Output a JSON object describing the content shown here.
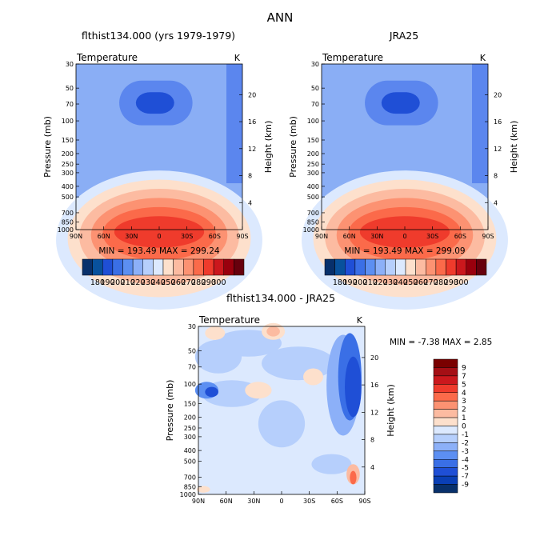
{
  "page_title": "ANN",
  "chart_data": [
    {
      "type": "heatmap",
      "title": "flthist134.000 (yrs 1979-1979)",
      "variable": "Temperature",
      "units": "K",
      "ylabel": "Pressure (mb)",
      "y2label": "Height (km)",
      "x_ticks": [
        "90N",
        "60N",
        "30N",
        "0",
        "30S",
        "60S",
        "90S"
      ],
      "y_ticks": [
        "30",
        "50",
        "70",
        "100",
        "150",
        "200",
        "250",
        "300",
        "400",
        "500",
        "700",
        "850",
        "1000"
      ],
      "y2_ticks": [
        "20",
        "16",
        "12",
        "8",
        "4"
      ],
      "stats": "MIN = 193.49   MAX = 299.24",
      "colorbar_labels": [
        "180",
        "190",
        "200",
        "210",
        "220",
        "230",
        "240",
        "250",
        "260",
        "270",
        "280",
        "290",
        "300"
      ]
    },
    {
      "type": "heatmap",
      "title": "JRA25",
      "variable": "Temperature",
      "units": "K",
      "ylabel": "Pressure (mb)",
      "y2label": "Height (km)",
      "x_ticks": [
        "90N",
        "60N",
        "30N",
        "0",
        "30S",
        "60S",
        "90S"
      ],
      "y_ticks": [
        "30",
        "50",
        "70",
        "100",
        "150",
        "200",
        "250",
        "300",
        "400",
        "500",
        "700",
        "850",
        "1000"
      ],
      "y2_ticks": [
        "20",
        "16",
        "12",
        "8",
        "4"
      ],
      "stats": "MIN = 193.49   MAX = 299.09",
      "colorbar_labels": [
        "180",
        "190",
        "200",
        "210",
        "220",
        "230",
        "240",
        "250",
        "260",
        "270",
        "280",
        "290",
        "300"
      ]
    },
    {
      "type": "heatmap",
      "title": "flthist134.000 - JRA25",
      "variable": "Temperature",
      "units": "K",
      "ylabel": "Pressure (mb)",
      "y2label": "Height (km)",
      "x_ticks": [
        "90N",
        "60N",
        "30N",
        "0",
        "30S",
        "60S",
        "90S"
      ],
      "y_ticks": [
        "30",
        "50",
        "70",
        "100",
        "150",
        "200",
        "250",
        "300",
        "400",
        "500",
        "700",
        "850",
        "1000"
      ],
      "y2_ticks": [
        "20",
        "16",
        "12",
        "8",
        "4"
      ],
      "stats": "MIN =   -7.38   MAX =    2.85",
      "colorbar_labels": [
        "9",
        "7",
        "5",
        "4",
        "3",
        "2",
        "1",
        "0",
        "-1",
        "-2",
        "-3",
        "-4",
        "-5",
        "-7",
        "-9"
      ]
    }
  ]
}
